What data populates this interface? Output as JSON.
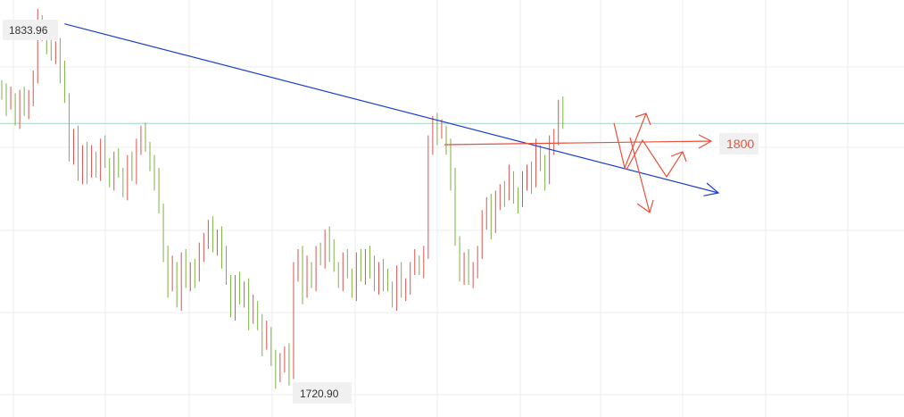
{
  "chart_data": {
    "type": "candlestick",
    "title": "",
    "ylim": [
      1714,
      1838
    ],
    "grid": true,
    "colors": {
      "up": "#d9534f",
      "down": "#7cb342",
      "trendline": "#1a3fd1",
      "forecast": "#e8503a",
      "level": "#9fd8c4"
    },
    "labels": {
      "high": "1833.96",
      "low": "1720.90",
      "level": "1800"
    },
    "close_series": [
      1812,
      1808,
      1810,
      1804,
      1810,
      1806,
      1811,
      1816,
      1834,
      1830,
      1827,
      1823,
      1826,
      1818,
      1810,
      1793,
      1798,
      1786,
      1794,
      1787,
      1792,
      1788,
      1795,
      1790,
      1785,
      1791,
      1787,
      1782,
      1790,
      1786,
      1796,
      1799,
      1795,
      1790,
      1785,
      1776,
      1762,
      1752,
      1758,
      1748,
      1760,
      1753,
      1758,
      1755,
      1762,
      1767,
      1770,
      1764,
      1768,
      1761,
      1754,
      1745,
      1753,
      1748,
      1752,
      1742,
      1746,
      1741,
      1734,
      1738,
      1730,
      1724,
      1728,
      1732,
      1725,
      1756,
      1762,
      1750,
      1758,
      1754,
      1762,
      1760,
      1768,
      1763,
      1758,
      1754,
      1760,
      1756,
      1751,
      1760,
      1755,
      1762,
      1758,
      1752,
      1758,
      1754,
      1752,
      1748,
      1756,
      1750,
      1753,
      1757,
      1760,
      1758,
      1762,
      1795,
      1803,
      1799,
      1800,
      1795,
      1785,
      1766,
      1756,
      1760,
      1754,
      1758,
      1762,
      1772,
      1778,
      1770,
      1778,
      1782,
      1780,
      1786,
      1780,
      1778,
      1784,
      1788,
      1784,
      1794,
      1790,
      1785,
      1795,
      1799,
      1807,
      1802
    ],
    "trendline": {
      "points": [
        [
          8,
          1833.96
        ],
        [
          124,
          1781
        ]
      ]
    },
    "level_line": 1800
  }
}
